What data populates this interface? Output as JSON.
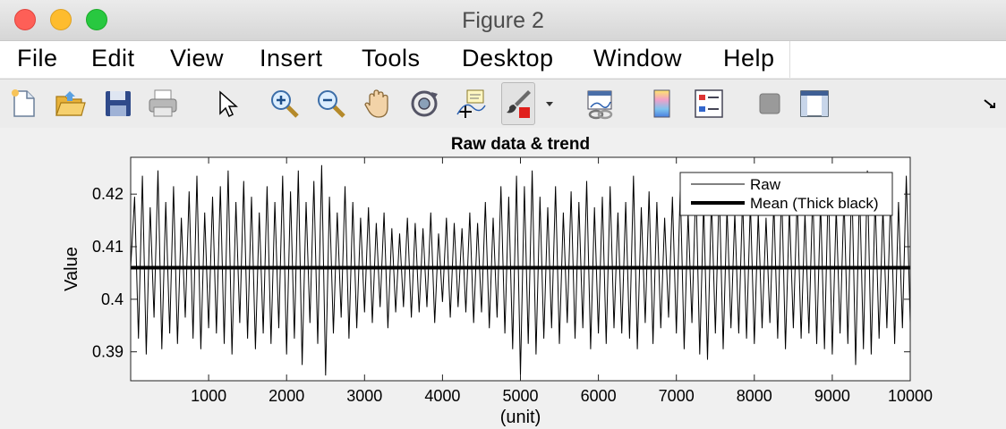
{
  "window": {
    "title": "Figure 2"
  },
  "menu": {
    "items": [
      "File",
      "Edit",
      "View",
      "Insert",
      "Tools",
      "Desktop",
      "Window",
      "Help"
    ]
  },
  "toolbar": {
    "icons": [
      "new-figure-icon",
      "open-file-icon",
      "save-icon",
      "print-icon",
      "edit-plot-arrow-icon",
      "zoom-in-icon",
      "zoom-out-icon",
      "pan-hand-icon",
      "rotate-3d-icon",
      "data-cursor-icon",
      "brush-icon",
      "brush-dropdown-icon",
      "link-plot-icon",
      "colorbar-icon",
      "legend-icon",
      "hide-plot-tools-icon",
      "show-plot-tools-icon",
      "dock-icon"
    ]
  },
  "chart_data": {
    "type": "line",
    "title": "Raw data & trend",
    "xlabel": "(unit)",
    "ylabel": "Value",
    "xlim": [
      0,
      10000
    ],
    "ylim": [
      0.3845,
      0.427
    ],
    "xticks": [
      1000,
      2000,
      3000,
      4000,
      5000,
      6000,
      7000,
      8000,
      9000,
      10000
    ],
    "xtick_labels": [
      "1000",
      "2000",
      "3000",
      "4000",
      "5000",
      "6000",
      "7000",
      "8000",
      "9000",
      "10000"
    ],
    "yticks": [
      0.39,
      0.4,
      0.41,
      0.42
    ],
    "ytick_labels": [
      "0.39",
      "0.4",
      "0.41",
      "0.42"
    ],
    "grid": false,
    "legend_position": "top-right",
    "series": [
      {
        "name": "Raw",
        "color": "#000000",
        "style": "thin",
        "x": [
          0,
          50,
          100,
          150,
          200,
          250,
          300,
          350,
          400,
          450,
          500,
          550,
          600,
          650,
          700,
          750,
          800,
          850,
          900,
          950,
          1000,
          1050,
          1100,
          1150,
          1200,
          1250,
          1300,
          1350,
          1400,
          1450,
          1500,
          1550,
          1600,
          1650,
          1700,
          1750,
          1800,
          1850,
          1900,
          1950,
          2000,
          2050,
          2100,
          2150,
          2200,
          2250,
          2300,
          2350,
          2400,
          2450,
          2500,
          2550,
          2600,
          2650,
          2700,
          2750,
          2800,
          2850,
          2900,
          2950,
          3000,
          3050,
          3100,
          3150,
          3200,
          3250,
          3300,
          3350,
          3400,
          3450,
          3500,
          3550,
          3600,
          3650,
          3700,
          3750,
          3800,
          3850,
          3900,
          3950,
          4000,
          4050,
          4100,
          4150,
          4200,
          4250,
          4300,
          4350,
          4400,
          4450,
          4500,
          4550,
          4600,
          4650,
          4700,
          4750,
          4800,
          4850,
          4900,
          4950,
          5000,
          5050,
          5100,
          5150,
          5200,
          5250,
          5300,
          5350,
          5400,
          5450,
          5500,
          5550,
          5600,
          5650,
          5700,
          5750,
          5800,
          5850,
          5900,
          5950,
          6000,
          6050,
          6100,
          6150,
          6200,
          6250,
          6300,
          6350,
          6400,
          6450,
          6500,
          6550,
          6600,
          6650,
          6700,
          6750,
          6800,
          6850,
          6900,
          6950,
          7000,
          7050,
          7100,
          7150,
          7200,
          7250,
          7300,
          7350,
          7400,
          7450,
          7500,
          7550,
          7600,
          7650,
          7700,
          7750,
          7800,
          7850,
          7900,
          7950,
          8000,
          8050,
          8100,
          8150,
          8200,
          8250,
          8300,
          8350,
          8400,
          8450,
          8500,
          8550,
          8600,
          8650,
          8700,
          8750,
          8800,
          8850,
          8900,
          8950,
          9000,
          9050,
          9100,
          9150,
          9200,
          9250,
          9300,
          9350,
          9400,
          9450,
          9500,
          9550,
          9600,
          9650,
          9700,
          9750,
          9800,
          9850,
          9900,
          9950,
          10000
        ],
        "y": [
          0.406,
          0.4195,
          0.3925,
          0.4235,
          0.3895,
          0.4175,
          0.3965,
          0.4245,
          0.3905,
          0.4185,
          0.3935,
          0.4215,
          0.3915,
          0.4155,
          0.3965,
          0.4205,
          0.3925,
          0.4235,
          0.3905,
          0.4165,
          0.3945,
          0.4195,
          0.3935,
          0.4215,
          0.3915,
          0.4245,
          0.3895,
          0.4185,
          0.3955,
          0.4225,
          0.3925,
          0.4195,
          0.3905,
          0.4165,
          0.3935,
          0.4215,
          0.3915,
          0.4185,
          0.3945,
          0.4235,
          0.3895,
          0.4205,
          0.3925,
          0.4245,
          0.3875,
          0.4185,
          0.3955,
          0.4225,
          0.3915,
          0.4255,
          0.3855,
          0.4195,
          0.3935,
          0.4165,
          0.3965,
          0.4215,
          0.3925,
          0.4185,
          0.3945,
          0.4155,
          0.3975,
          0.4175,
          0.3955,
          0.4145,
          0.3985,
          0.4165,
          0.3945,
          0.4135,
          0.3975,
          0.4125,
          0.3985,
          0.4155,
          0.3965,
          0.4145,
          0.3975,
          0.4135,
          0.3985,
          0.4165,
          0.3955,
          0.4125,
          0.3995,
          0.4155,
          0.3965,
          0.4145,
          0.3985,
          0.4135,
          0.3975,
          0.4165,
          0.3955,
          0.4145,
          0.3975,
          0.4185,
          0.3945,
          0.4155,
          0.3965,
          0.4215,
          0.3935,
          0.4195,
          0.3905,
          0.4235,
          0.3855,
          0.4215,
          0.3915,
          0.4245,
          0.3895,
          0.4195,
          0.3925,
          0.4175,
          0.3945,
          0.4215,
          0.3915,
          0.4165,
          0.3955,
          0.4205,
          0.3925,
          0.4185,
          0.3945,
          0.4225,
          0.3905,
          0.4175,
          0.3935,
          0.4195,
          0.3915,
          0.4215,
          0.3945,
          0.4165,
          0.3935,
          0.4185,
          0.3925,
          0.4235,
          0.3905,
          0.4175,
          0.3955,
          0.4205,
          0.3915,
          0.4185,
          0.3945,
          0.4155,
          0.3965,
          0.4195,
          0.3935,
          0.4215,
          0.3905,
          0.4165,
          0.3955,
          0.4225,
          0.3895,
          0.4185,
          0.3885,
          0.4195,
          0.3935,
          0.4215,
          0.3905,
          0.4175,
          0.3945,
          0.4165,
          0.3935,
          0.4195,
          0.3925,
          0.4185,
          0.3915,
          0.4165,
          0.3945,
          0.4155,
          0.3955,
          0.4185,
          0.3925,
          0.4215,
          0.3905,
          0.4175,
          0.3945,
          0.4195,
          0.3925,
          0.4165,
          0.3935,
          0.4205,
          0.3915,
          0.4185,
          0.3905,
          0.4225,
          0.3895,
          0.4175,
          0.3935,
          0.4195,
          0.3915,
          0.4235,
          0.3875,
          0.4215,
          0.3905,
          0.4245,
          0.3895,
          0.4195,
          0.3925,
          0.4175,
          0.3945,
          0.4205,
          0.3915,
          0.4185,
          0.3945,
          0.4235,
          0.3955
        ]
      },
      {
        "name": "Mean (Thick black)",
        "color": "#000000",
        "style": "thick",
        "x": [
          0,
          10000
        ],
        "y": [
          0.406,
          0.406
        ]
      }
    ]
  }
}
